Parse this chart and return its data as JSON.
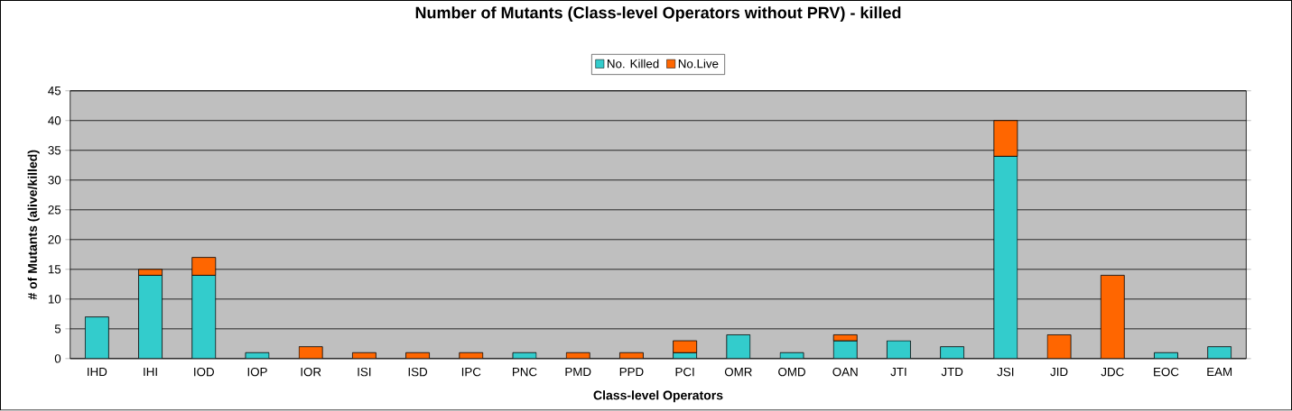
{
  "chart_data": {
    "type": "bar",
    "stacked": true,
    "title": "Number of Mutants (Class-level Operators without PRV) - killed",
    "xlabel": "Class-level Operators",
    "ylabel": "# of Mutants (alive/killed)",
    "categories": [
      "IHD",
      "IHI",
      "IOD",
      "IOP",
      "IOR",
      "ISI",
      "ISD",
      "IPC",
      "PNC",
      "PMD",
      "PPD",
      "PCI",
      "OMR",
      "OMD",
      "OAN",
      "JTI",
      "JTD",
      "JSI",
      "JID",
      "JDC",
      "EOC",
      "EAM"
    ],
    "series": [
      {
        "name": "No. Killed",
        "color": "#33cccc",
        "values": [
          7,
          14,
          14,
          1,
          0,
          0,
          0,
          0,
          1,
          0,
          0,
          1,
          4,
          1,
          3,
          3,
          2,
          34,
          0,
          0,
          1,
          2
        ]
      },
      {
        "name": "No.Live",
        "color": "#ff6600",
        "values": [
          0,
          1,
          3,
          0,
          2,
          1,
          1,
          1,
          0,
          1,
          1,
          2,
          0,
          0,
          1,
          0,
          0,
          6,
          4,
          14,
          0,
          0
        ]
      }
    ],
    "ylim": [
      0,
      45
    ],
    "yticks": [
      0,
      5,
      10,
      15,
      20,
      25,
      30,
      35,
      40,
      45
    ],
    "grid": "y",
    "legend": "top"
  }
}
